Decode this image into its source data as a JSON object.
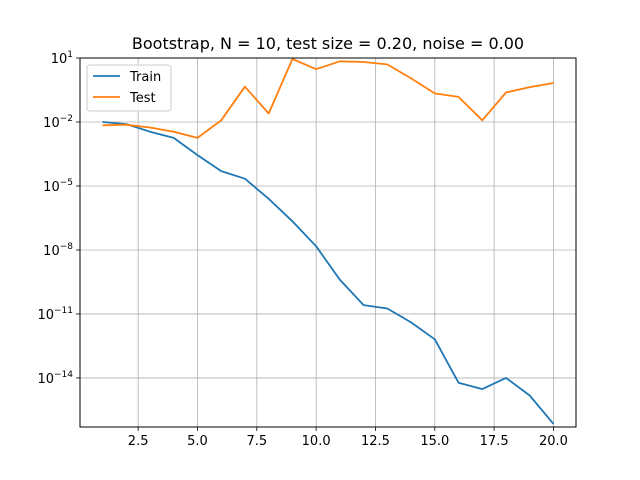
{
  "chart_data": {
    "type": "line",
    "title": "Bootstrap, N = 10, test size = 0.20, noise = 0.00",
    "xlabel": "",
    "ylabel": "",
    "x": [
      1,
      2,
      3,
      4,
      5,
      6,
      7,
      8,
      9,
      10,
      11,
      12,
      13,
      14,
      15,
      16,
      17,
      18,
      19,
      20
    ],
    "xlim": [
      0.05,
      20.95
    ],
    "yscale": "log",
    "ylim_exponent": [
      -16.3,
      1.0
    ],
    "x_ticks": [
      2.5,
      5.0,
      7.5,
      10.0,
      12.5,
      15.0,
      17.5,
      20.0
    ],
    "x_tick_labels": [
      "2.5",
      "5.0",
      "7.5",
      "10.0",
      "12.5",
      "15.0",
      "17.5",
      "20.0"
    ],
    "y_tick_exponents": [
      -14,
      -11,
      -8,
      -5,
      -2,
      1
    ],
    "y_tick_labels": [
      "10",
      "10",
      "10",
      "10",
      "10",
      "10"
    ],
    "y_tick_superscripts": [
      "−14",
      "−11",
      "−8",
      "−5",
      "−2",
      "1"
    ],
    "grid": true,
    "legend": "top-left",
    "series": [
      {
        "name": "Train",
        "color": "#1f77b4",
        "values": [
          0.01,
          0.008,
          0.0035,
          0.0018,
          0.00028,
          5e-05,
          2.2e-05,
          2.5e-06,
          2.2e-07,
          1.5e-08,
          4e-10,
          2.6e-11,
          1.8e-11,
          4e-12,
          6.5e-13,
          6e-15,
          3e-15,
          1e-14,
          1.5e-15,
          7e-17
        ]
      },
      {
        "name": "Test",
        "color": "#ff7f0e",
        "values": [
          0.007,
          0.0075,
          0.0055,
          0.0035,
          0.0018,
          0.012,
          0.45,
          0.025,
          9.0,
          3.0,
          7.0,
          6.5,
          5.0,
          1.1,
          0.22,
          0.15,
          0.012,
          0.24,
          0.43,
          0.67
        ]
      }
    ]
  }
}
